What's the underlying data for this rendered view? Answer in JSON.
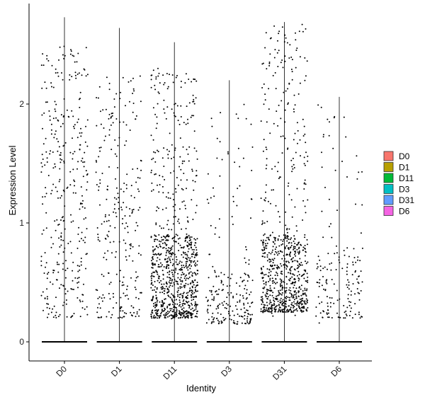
{
  "chart_data": {
    "type": "scatter",
    "subtype": "violin-jitter",
    "xlabel": "Identity",
    "ylabel": "Expression Level",
    "categories": [
      "D0",
      "D1",
      "D11",
      "D3",
      "D31",
      "D6"
    ],
    "yticks": [
      0,
      1,
      2
    ],
    "ylim": [
      -0.15,
      2.75
    ],
    "x_tick_rotation": -45,
    "grid": false,
    "legend": {
      "position": "right",
      "entries": [
        {
          "label": "D0",
          "color": "#F8766D"
        },
        {
          "label": "D1",
          "color": "#B79F00"
        },
        {
          "label": "D11",
          "color": "#00BA38"
        },
        {
          "label": "D3",
          "color": "#00BFC4"
        },
        {
          "label": "D31",
          "color": "#619CFF"
        },
        {
          "label": "D6",
          "color": "#F564E3"
        }
      ]
    },
    "series": [
      {
        "category": "D0",
        "max": 2.73,
        "nonzero_points": 340,
        "low": 0.2,
        "high": 2.5,
        "dense_low": 0.2,
        "dense_high": 2.5
      },
      {
        "category": "D1",
        "max": 2.64,
        "nonzero_points": 260,
        "low": 0.2,
        "high": 2.3,
        "dense_low": 0.2,
        "dense_high": 2.1
      },
      {
        "category": "D11",
        "max": 2.52,
        "nonzero_points": 900,
        "low": 0.18,
        "high": 2.3,
        "dense_low": 0.2,
        "dense_high": 0.9
      },
      {
        "category": "D3",
        "max": 2.2,
        "nonzero_points": 220,
        "low": 0.15,
        "high": 2.0,
        "dense_low": 0.15,
        "dense_high": 0.6
      },
      {
        "category": "D31",
        "max": 2.69,
        "nonzero_points": 800,
        "low": 0.2,
        "high": 2.7,
        "dense_low": 0.25,
        "dense_high": 0.9
      },
      {
        "category": "D6",
        "max": 2.06,
        "nonzero_points": 170,
        "low": 0.15,
        "high": 2.0,
        "dense_low": 0.2,
        "dense_high": 0.8
      }
    ]
  }
}
